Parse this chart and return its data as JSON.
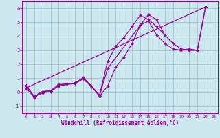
{
  "xlabel": "Windchill (Refroidissement éolien,°C)",
  "xlim": [
    -0.5,
    23.5
  ],
  "ylim": [
    -1.5,
    6.5
  ],
  "yticks": [
    -1,
    0,
    1,
    2,
    3,
    4,
    5,
    6
  ],
  "xticks": [
    0,
    1,
    2,
    3,
    4,
    5,
    6,
    7,
    8,
    9,
    10,
    11,
    12,
    13,
    14,
    15,
    16,
    17,
    18,
    19,
    20,
    21,
    22,
    23
  ],
  "bg_color": "#cce8ee",
  "line_color": "#990099",
  "grid_color": "#99bbcc",
  "line1_x": [
    0,
    1,
    2,
    3,
    4,
    5,
    6,
    7,
    8,
    9,
    10,
    11,
    12,
    13,
    14,
    15,
    16,
    17,
    18,
    19,
    20,
    21,
    22
  ],
  "line1_y": [
    0.5,
    -0.4,
    0.05,
    0.1,
    0.55,
    0.6,
    0.65,
    1.05,
    0.45,
    -0.2,
    2.2,
    3.3,
    3.9,
    4.7,
    5.5,
    5.2,
    4.7,
    4.1,
    3.5,
    3.1,
    3.0,
    3.0,
    6.1
  ],
  "line2_x": [
    0,
    1,
    2,
    3,
    4,
    5,
    6,
    7,
    8,
    9,
    10,
    11,
    12,
    13,
    14,
    15,
    16,
    17
  ],
  "line2_y": [
    0.5,
    -0.3,
    0.05,
    0.1,
    0.5,
    0.6,
    0.65,
    1.0,
    0.45,
    -0.3,
    0.45,
    1.8,
    2.5,
    3.5,
    4.8,
    5.55,
    5.2,
    4.1
  ],
  "line3_x": [
    0,
    22
  ],
  "line3_y": [
    0.3,
    6.1
  ],
  "line4_x": [
    0,
    1,
    2,
    3,
    4,
    5,
    6,
    7,
    8,
    9,
    10,
    14,
    15,
    16,
    17,
    18,
    19,
    20,
    21,
    22
  ],
  "line4_y": [
    0.3,
    -0.35,
    -0.05,
    0.05,
    0.45,
    0.55,
    0.62,
    0.95,
    0.4,
    -0.25,
    1.7,
    4.8,
    5.1,
    4.1,
    3.5,
    3.1,
    3.0,
    3.1,
    3.0,
    6.1
  ]
}
